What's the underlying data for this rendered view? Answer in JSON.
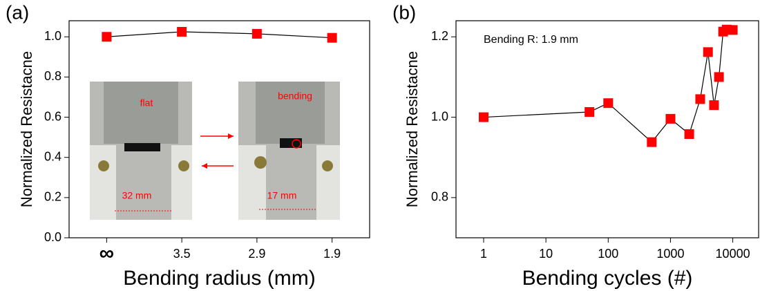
{
  "chart_data": [
    {
      "type": "line",
      "panel": "(a)",
      "xlabel": "Bending radius (mm)",
      "ylabel": "Normalized Resistacne",
      "categories": [
        "∞",
        "3.5",
        "2.9",
        "1.9"
      ],
      "values": [
        1.0,
        1.025,
        1.015,
        0.995
      ],
      "color": "#ff0000",
      "line_color": "#000000",
      "ylim": [
        0,
        1.08
      ],
      "yticks": [
        {
          "value": 0,
          "label": "0.0"
        },
        0.2,
        0.4,
        0.6,
        0.8,
        {
          "value": 1,
          "label": "1.0"
        }
      ],
      "annotations": [
        "flat",
        "bending",
        "32 mm",
        "17 mm"
      ]
    },
    {
      "type": "line",
      "panel": "(b)",
      "xlabel": "Bending cycles (#)",
      "ylabel": "Normalized Resistacne",
      "annotation": "Bending R: 1.9 mm",
      "x_scale": "log",
      "x": [
        1,
        50,
        100,
        500,
        1000,
        2000,
        3000,
        4000,
        5000,
        6000,
        7000,
        8000,
        10000
      ],
      "values": [
        1.0,
        1.013,
        1.035,
        0.938,
        0.996,
        0.958,
        1.045,
        1.162,
        1.03,
        1.1,
        1.213,
        1.218,
        1.217
      ],
      "color": "#ff0000",
      "line_color": "#000000",
      "xlim": [
        0.36,
        26000
      ],
      "xticks": [
        1,
        10,
        100,
        1000,
        10000
      ],
      "ylim": [
        0.7,
        1.24
      ],
      "yticks": [
        0.8,
        {
          "value": 1,
          "label": "1.0"
        },
        1.2
      ]
    }
  ]
}
